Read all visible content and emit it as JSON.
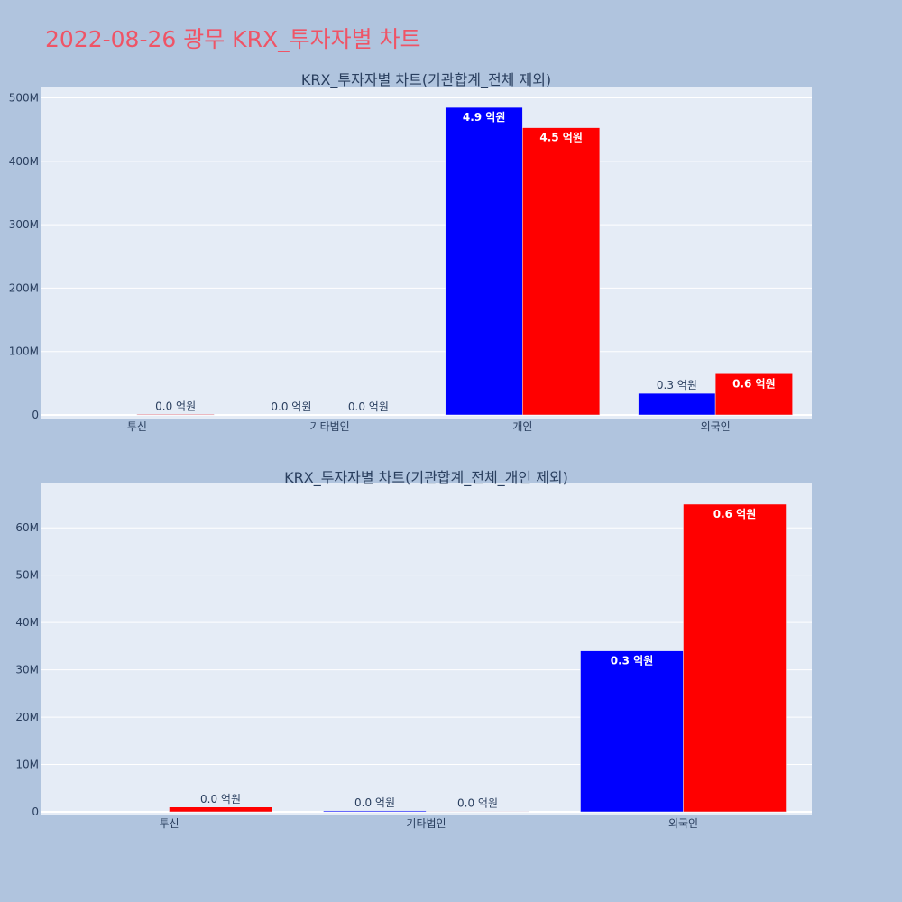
{
  "page": {
    "title": "2022-08-26 광무 KRX_투자자별 차트"
  },
  "colors": {
    "background": "#b0c4de",
    "plot_background": "#e5ecf6",
    "grid": "#ffffff",
    "title": "#ef5466",
    "text": "#2a3f5f",
    "series_buy": "#0000ff",
    "series_sell": "#ff0000"
  },
  "chart_data": [
    {
      "type": "bar",
      "title": "KRX_투자자별 차트(기관합계_전체 제외)",
      "categories": [
        "투신",
        "기타법인",
        "개인",
        "외국인"
      ],
      "y_ticks": [
        "0",
        "100M",
        "200M",
        "300M",
        "400M",
        "500M"
      ],
      "y_tick_values": [
        0,
        100000000,
        200000000,
        300000000,
        400000000,
        500000000
      ],
      "ylim": [
        0,
        515000000
      ],
      "grid": true,
      "series": [
        {
          "color": "#0000ff",
          "values": [
            0,
            0,
            485000000,
            34000000
          ],
          "labels": [
            "",
            "0.0 억원",
            "4.9 억원",
            "0.3 억원"
          ]
        },
        {
          "color": "#ff0000",
          "values": [
            1000000,
            0,
            453000000,
            65000000
          ],
          "labels": [
            "0.0 억원",
            "0.0 억원",
            "4.5 억원",
            "0.6 억원"
          ]
        }
      ]
    },
    {
      "type": "bar",
      "title": "KRX_투자자별 차트(기관합계_전체_개인 제외)",
      "categories": [
        "투신",
        "기타법인",
        "외국인"
      ],
      "y_ticks": [
        "0",
        "10M",
        "20M",
        "30M",
        "40M",
        "50M",
        "60M"
      ],
      "y_tick_values": [
        0,
        10000000,
        20000000,
        30000000,
        40000000,
        50000000,
        60000000
      ],
      "ylim": [
        0,
        69000000
      ],
      "grid": true,
      "series": [
        {
          "color": "#0000ff",
          "values": [
            0,
            200000,
            34000000
          ],
          "labels": [
            "",
            "0.0 억원",
            "0.3 억원"
          ]
        },
        {
          "color": "#ff0000",
          "values": [
            1000000,
            100000,
            65000000
          ],
          "labels": [
            "0.0 억원",
            "0.0 억원",
            "0.6 억원"
          ]
        }
      ]
    }
  ]
}
